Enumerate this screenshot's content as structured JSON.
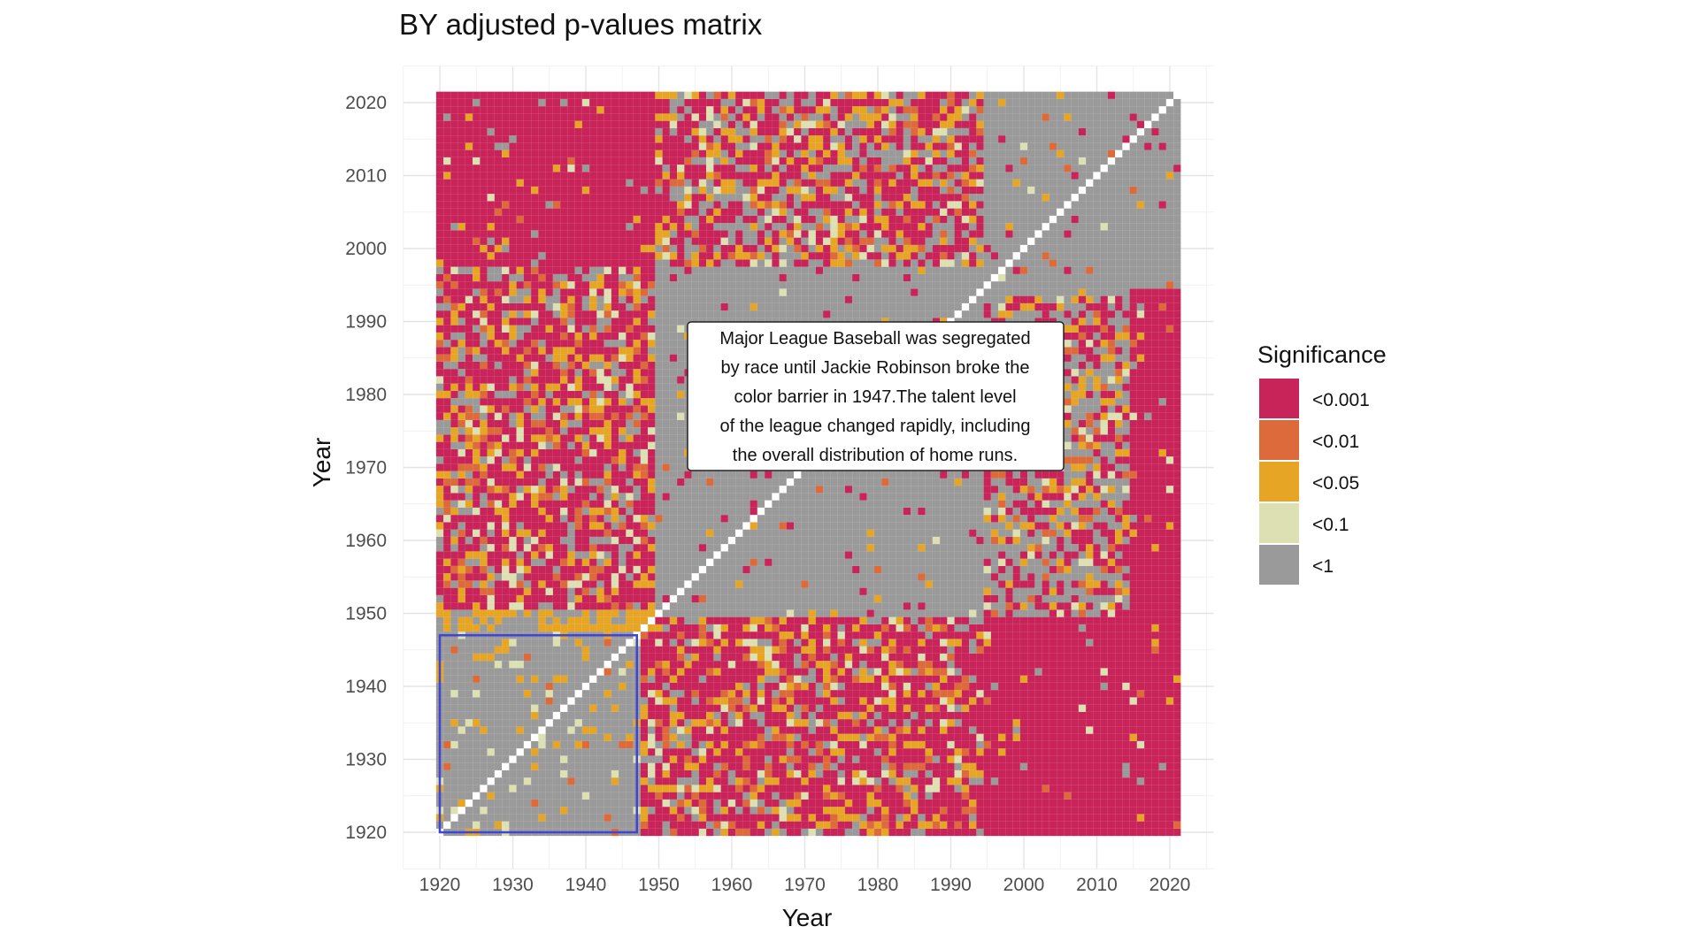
{
  "chart_data": {
    "type": "heatmap",
    "title": "BY adjusted p-values matrix",
    "xlabel": "Year",
    "ylabel": "Year",
    "x_range": [
      1920,
      2021
    ],
    "y_range": [
      1920,
      2021
    ],
    "xlim": [
      1915,
      2026
    ],
    "ylim": [
      1915,
      2025
    ],
    "x_ticks": [
      "1920",
      "1930",
      "1940",
      "1950",
      "1960",
      "1970",
      "1980",
      "1990",
      "2000",
      "2010",
      "2020"
    ],
    "y_ticks": [
      "1920",
      "1930",
      "1940",
      "1950",
      "1960",
      "1970",
      "1980",
      "1990",
      "2000",
      "2010",
      "2020"
    ],
    "grid": true,
    "legend": {
      "title": "Significance",
      "position": "right",
      "entries": [
        {
          "label": "<0.001",
          "color": "#C9245A"
        },
        {
          "label": "<0.01",
          "color": "#DD6A3B"
        },
        {
          "label": "<0.05",
          "color": "#E6A524"
        },
        {
          "label": "<0.1",
          "color": "#DCE0B2"
        },
        {
          "label": "<1",
          "color": "#9A9A9A"
        }
      ]
    },
    "diagonal_color": "#FFFFFF",
    "highlight_box": {
      "x": [
        1920,
        1947
      ],
      "y": [
        1920,
        1947
      ],
      "color": "#3F46D6"
    },
    "annotation": {
      "lines": [
        "Major League Baseball was segregated",
        "by race until Jackie Robinson broke the",
        "color barrier in 1947.The talent level",
        "of the league changed rapidly, including",
        "the overall distribution of home runs."
      ],
      "x": 1970,
      "y": 1980
    },
    "regions": [
      {
        "x": [
          1921,
          1949
        ],
        "y": [
          1921,
          1947
        ],
        "level": "<1"
      },
      {
        "x": [
          1921,
          1949
        ],
        "y": [
          1948,
          1950
        ],
        "level": "<0.05"
      },
      {
        "x": [
          1921,
          1949
        ],
        "y": [
          1951,
          1997
        ],
        "level": "mixed"
      },
      {
        "x": [
          1921,
          1949
        ],
        "y": [
          1998,
          2021
        ],
        "level": "<0.001"
      },
      {
        "x": [
          1950,
          1994
        ],
        "y": [
          1921,
          1949
        ],
        "level": "mixed"
      },
      {
        "x": [
          1950,
          1994
        ],
        "y": [
          1950,
          1997
        ],
        "level": "<1"
      },
      {
        "x": [
          1950,
          1994
        ],
        "y": [
          1998,
          2021
        ],
        "level": "mixed"
      },
      {
        "x": [
          1995,
          2021
        ],
        "y": [
          1921,
          1949
        ],
        "level": "<0.001"
      },
      {
        "x": [
          1995,
          2014
        ],
        "y": [
          1950,
          1993
        ],
        "level": "mixed"
      },
      {
        "x": [
          1995,
          2021
        ],
        "y": [
          1994,
          2021
        ],
        "level": "<1"
      },
      {
        "x": [
          2015,
          2021
        ],
        "y": [
          1921,
          1994
        ],
        "level": "<0.001"
      }
    ]
  }
}
